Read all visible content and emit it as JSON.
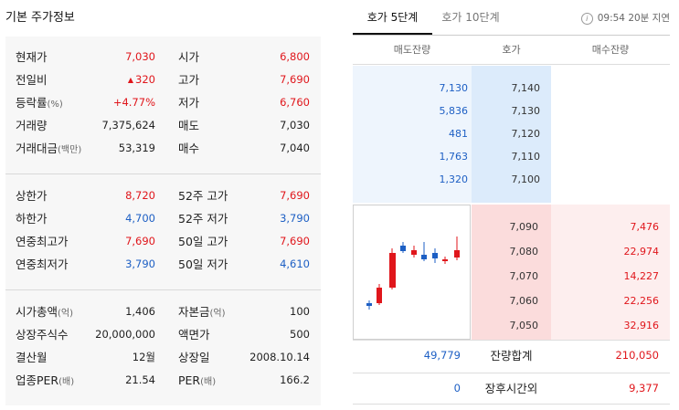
{
  "title": "기본 주가정보",
  "left": {
    "sec1": [
      {
        "l1": "현재가",
        "s1": "",
        "v1": "7,030",
        "c1": "red",
        "l2": "시가",
        "s2": "",
        "v2": "6,800",
        "c2": "red"
      },
      {
        "l1": "전일비",
        "s1": "",
        "v1": "320",
        "c1": "red",
        "l2": "고가",
        "s2": "",
        "v2": "7,690",
        "c2": "red"
      },
      {
        "l1": "등락률",
        "s1": "(%)",
        "v1": "+4.77%",
        "c1": "red",
        "l2": "저가",
        "s2": "",
        "v2": "6,760",
        "c2": "red"
      },
      {
        "l1": "거래량",
        "s1": "",
        "v1": "7,375,624",
        "c1": "dark",
        "l2": "매도",
        "s2": "",
        "v2": "7,030",
        "c2": "dark"
      },
      {
        "l1": "거래대금",
        "s1": "(백만)",
        "v1": "53,319",
        "c1": "dark",
        "l2": "매수",
        "s2": "",
        "v2": "7,040",
        "c2": "dark"
      }
    ],
    "change_arrow": "▲",
    "sec2": [
      {
        "l1": "상한가",
        "s1": "",
        "v1": "8,720",
        "c1": "red",
        "l2": "52주 고가",
        "s2": "",
        "v2": "7,690",
        "c2": "red"
      },
      {
        "l1": "하한가",
        "s1": "",
        "v1": "4,700",
        "c1": "blue",
        "l2": "52주 저가",
        "s2": "",
        "v2": "3,790",
        "c2": "blue"
      },
      {
        "l1": "연중최고가",
        "s1": "",
        "v1": "7,690",
        "c1": "red",
        "l2": "50일 고가",
        "s2": "",
        "v2": "7,690",
        "c2": "red"
      },
      {
        "l1": "연중최저가",
        "s1": "",
        "v1": "3,790",
        "c1": "blue",
        "l2": "50일 저가",
        "s2": "",
        "v2": "4,610",
        "c2": "blue"
      }
    ],
    "sec3": [
      {
        "l1": "시가총액",
        "s1": "(억)",
        "v1": "1,406",
        "c1": "dark",
        "l2": "자본금",
        "s2": "(억)",
        "v2": "100",
        "c2": "dark"
      },
      {
        "l1": "상장주식수",
        "s1": "",
        "v1": "20,000,000",
        "c1": "dark",
        "l2": "액면가",
        "s2": "",
        "v2": "500",
        "c2": "dark"
      },
      {
        "l1": "결산월",
        "s1": "",
        "v1": "12월",
        "c1": "dark",
        "l2": "상장일",
        "s2": "",
        "v2": "2008.10.14",
        "c2": "dark"
      },
      {
        "l1": "업종PER",
        "s1": "(배)",
        "v1": "21.54",
        "c1": "dark",
        "l2": "PER",
        "s2": "(배)",
        "v2": "166.2",
        "c2": "dark"
      }
    ]
  },
  "orderbook": {
    "tab_5": "호가 5단계",
    "tab_10": "호가 10단계",
    "info": "09:54 20분 지연",
    "info_icon": "i",
    "header": {
      "ask": "매도잔량",
      "price": "호가",
      "bid": "매수잔량"
    },
    "asks": [
      {
        "qty": "7,130",
        "price": "7,140"
      },
      {
        "qty": "5,836",
        "price": "7,130"
      },
      {
        "qty": "481",
        "price": "7,120"
      },
      {
        "qty": "1,763",
        "price": "7,110"
      },
      {
        "qty": "1,320",
        "price": "7,100"
      }
    ],
    "bids": [
      {
        "price": "7,090",
        "qty": "7,476"
      },
      {
        "price": "7,080",
        "qty": "22,974"
      },
      {
        "price": "7,070",
        "qty": "14,227"
      },
      {
        "price": "7,060",
        "qty": "22,256"
      },
      {
        "price": "7,050",
        "qty": "32,916"
      }
    ],
    "total": {
      "label": "잔량합계",
      "ask": "49,779",
      "bid": "210,050"
    },
    "after": {
      "label": "장후시간외",
      "ask": "0",
      "bid": "9,377"
    },
    "colors": {
      "up": "#e0161b",
      "down": "#1d5fc4"
    }
  }
}
